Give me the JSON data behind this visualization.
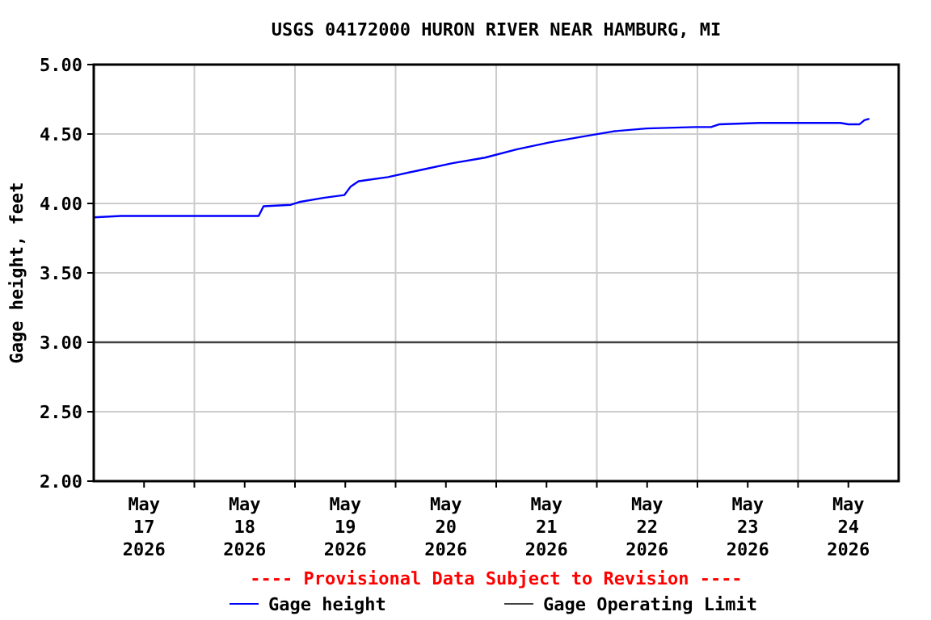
{
  "chart_data": {
    "type": "line",
    "title": "USGS 04172000 HURON RIVER NEAR HAMBURG, MI",
    "ylabel": "Gage height, feet",
    "annotations": [
      "---- Provisional Data Subject to Revision ----"
    ],
    "series": [
      {
        "name": "Gage height",
        "color": "#0000ff",
        "x": [
          "2026-05-17T00:00",
          "2026-05-17T06:30",
          "2026-05-18T15:20",
          "2026-05-18T16:30",
          "2026-05-18T23:00",
          "2026-05-19T01:00",
          "2026-05-19T06:45",
          "2026-05-19T11:45",
          "2026-05-19T13:15",
          "2026-05-19T15:10",
          "2026-05-19T22:10",
          "2026-05-20T05:50",
          "2026-05-20T13:35",
          "2026-05-20T21:20",
          "2026-05-21T05:00",
          "2026-05-21T12:45",
          "2026-05-21T20:25",
          "2026-05-22T04:05",
          "2026-05-22T11:50",
          "2026-05-22T23:25",
          "2026-05-23T03:15",
          "2026-05-23T05:15",
          "2026-05-23T14:50",
          "2026-05-24T10:05",
          "2026-05-24T12:00",
          "2026-05-24T14:40",
          "2026-05-24T15:50",
          "2026-05-24T17:00"
        ],
        "values": [
          3.9,
          3.91,
          3.91,
          3.98,
          3.99,
          4.01,
          4.04,
          4.06,
          4.12,
          4.16,
          4.19,
          4.24,
          4.29,
          4.33,
          4.39,
          4.44,
          4.48,
          4.52,
          4.54,
          4.55,
          4.55,
          4.57,
          4.58,
          4.58,
          4.57,
          4.57,
          4.6,
          4.61
        ]
      }
    ],
    "ref_lines": [
      {
        "axis": "y",
        "value": 3.0,
        "label": "Gage Operating Limit",
        "color": "#404040"
      }
    ],
    "xlim": [
      "2026-05-17T00:00",
      "2026-05-25T00:00"
    ],
    "xticks": [
      {
        "value": "2026-05-17T12:00",
        "label": "May\n17\n2026"
      },
      {
        "value": "2026-05-18T00:00",
        "label": null
      },
      {
        "value": "2026-05-18T12:00",
        "label": "May\n18\n2026"
      },
      {
        "value": "2026-05-19T00:00",
        "label": null
      },
      {
        "value": "2026-05-19T12:00",
        "label": "May\n19\n2026"
      },
      {
        "value": "2026-05-20T00:00",
        "label": null
      },
      {
        "value": "2026-05-20T12:00",
        "label": "May\n20\n2026"
      },
      {
        "value": "2026-05-21T00:00",
        "label": null
      },
      {
        "value": "2026-05-21T12:00",
        "label": "May\n21\n2026"
      },
      {
        "value": "2026-05-22T00:00",
        "label": null
      },
      {
        "value": "2026-05-22T12:00",
        "label": "May\n22\n2026"
      },
      {
        "value": "2026-05-23T00:00",
        "label": null
      },
      {
        "value": "2026-05-23T12:00",
        "label": "May\n23\n2026"
      },
      {
        "value": "2026-05-24T00:00",
        "label": null
      },
      {
        "value": "2026-05-24T12:00",
        "label": "May\n24\n2026"
      }
    ],
    "ylim": [
      2.0,
      5.0
    ],
    "yticks": [
      {
        "value": 2,
        "label": "2.00"
      },
      {
        "value": 2.5,
        "label": "2.50"
      },
      {
        "value": 3,
        "label": "3.00"
      },
      {
        "value": 3.5,
        "label": "3.50"
      },
      {
        "value": 4,
        "label": "4.00"
      },
      {
        "value": 4.5,
        "label": "4.50"
      },
      {
        "value": 5,
        "label": "5.00"
      }
    ],
    "grid": true,
    "legend": "bottom",
    "line_style": "solid",
    "marker": "none"
  }
}
